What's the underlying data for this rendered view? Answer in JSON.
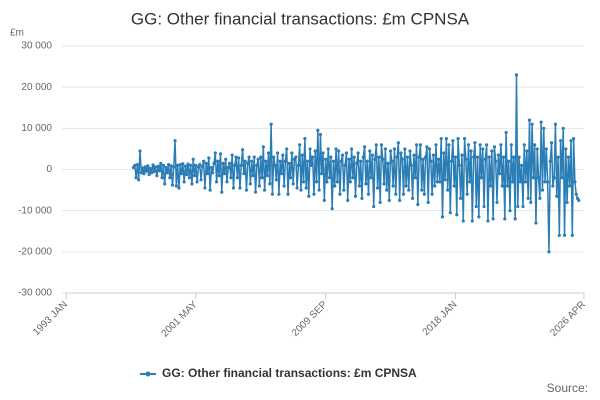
{
  "chart_data": {
    "type": "line",
    "title": "GG: Other financial transactions: £m CPNSA",
    "y_label": "£m",
    "source": "Source:",
    "ylim": [
      -30000,
      30000
    ],
    "yticks": [
      {
        "value": -30000,
        "label": "-30 000"
      },
      {
        "value": -20000,
        "label": "-20 000"
      },
      {
        "value": -10000,
        "label": "-10 000"
      },
      0,
      {
        "value": 10000,
        "label": "10 000"
      },
      {
        "value": 20000,
        "label": "20 000"
      },
      {
        "value": 30000,
        "label": "30 000"
      }
    ],
    "xlim": [
      "1993 JAN",
      "2026 APR"
    ],
    "xticks": [
      "1993 JAN",
      "2001 MAY",
      "2009 SEP",
      "2018 JAN",
      "2026 APR"
    ],
    "grid": true,
    "series": [
      {
        "name": "GG: Other financial transactions: £m CPNSA",
        "color": "#2a7db5",
        "x": [
          "1997 MAY",
          "1997 JUN",
          "1997 JUL",
          "1997 AUG",
          "1997 SEP",
          "1997 OCT",
          "1997 NOV",
          "1997 DEC",
          "1998 JAN",
          "1998 FEB",
          "1998 MAR",
          "1998 APR",
          "1998 MAY",
          "1998 JUN",
          "1998 JUL",
          "1998 AUG",
          "1998 SEP",
          "1998 OCT",
          "1998 NOV",
          "1998 DEC",
          "1999 JAN",
          "1999 FEB",
          "1999 MAR",
          "1999 APR",
          "1999 MAY",
          "1999 JUN",
          "1999 JUL",
          "1999 AUG",
          "1999 SEP",
          "1999 OCT",
          "1999 NOV",
          "1999 DEC",
          "2000 JAN",
          "2000 FEB",
          "2000 MAR",
          "2000 APR",
          "2000 MAY",
          "2000 JUN",
          "2000 JUL",
          "2000 AUG",
          "2000 SEP",
          "2000 OCT",
          "2000 NOV",
          "2000 DEC",
          "2001 JAN",
          "2001 FEB",
          "2001 MAR",
          "2001 APR",
          "2001 MAY",
          "2001 JUN",
          "2001 JUL",
          "2001 AUG",
          "2001 SEP",
          "2001 OCT",
          "2001 NOV",
          "2001 DEC",
          "2002 JAN",
          "2002 FEB",
          "2002 MAR",
          "2002 APR",
          "2002 MAY",
          "2002 JUN",
          "2002 JUL",
          "2002 AUG",
          "2002 SEP",
          "2002 OCT",
          "2002 NOV",
          "2002 DEC",
          "2003 JAN",
          "2003 FEB",
          "2003 MAR",
          "2003 APR",
          "2003 MAY",
          "2003 JUN",
          "2003 JUL",
          "2003 AUG",
          "2003 SEP",
          "2003 OCT",
          "2003 NOV",
          "2003 DEC",
          "2004 JAN",
          "2004 FEB",
          "2004 MAR",
          "2004 APR",
          "2004 MAY",
          "2004 JUN",
          "2004 JUL",
          "2004 AUG",
          "2004 SEP",
          "2004 OCT",
          "2004 NOV",
          "2004 DEC",
          "2005 JAN",
          "2005 FEB",
          "2005 MAR",
          "2005 APR",
          "2005 MAY",
          "2005 JUN",
          "2005 JUL",
          "2005 AUG",
          "2005 SEP",
          "2005 OCT",
          "2005 NOV",
          "2005 DEC",
          "2006 JAN",
          "2006 FEB",
          "2006 MAR",
          "2006 APR",
          "2006 MAY",
          "2006 JUN",
          "2006 JUL",
          "2006 AUG",
          "2006 SEP",
          "2006 OCT",
          "2006 NOV",
          "2006 DEC",
          "2007 JAN",
          "2007 FEB",
          "2007 MAR",
          "2007 APR",
          "2007 MAY",
          "2007 JUN",
          "2007 JUL",
          "2007 AUG",
          "2007 SEP",
          "2007 OCT",
          "2007 NOV",
          "2007 DEC",
          "2008 JAN",
          "2008 FEB",
          "2008 MAR",
          "2008 APR",
          "2008 MAY",
          "2008 JUN",
          "2008 JUL",
          "2008 AUG",
          "2008 SEP",
          "2008 OCT",
          "2008 NOV",
          "2008 DEC",
          "2009 JAN",
          "2009 FEB",
          "2009 MAR",
          "2009 APR",
          "2009 MAY",
          "2009 JUN",
          "2009 JUL",
          "2009 AUG",
          "2009 SEP",
          "2009 OCT",
          "2009 NOV",
          "2009 DEC",
          "2010 JAN",
          "2010 FEB",
          "2010 MAR",
          "2010 APR",
          "2010 MAY",
          "2010 JUN",
          "2010 JUL",
          "2010 AUG",
          "2010 SEP",
          "2010 OCT",
          "2010 NOV",
          "2010 DEC",
          "2011 JAN",
          "2011 FEB",
          "2011 MAR",
          "2011 APR",
          "2011 MAY",
          "2011 JUN",
          "2011 JUL",
          "2011 AUG",
          "2011 SEP",
          "2011 OCT",
          "2011 NOV",
          "2011 DEC",
          "2012 JAN",
          "2012 FEB",
          "2012 MAR",
          "2012 APR",
          "2012 MAY",
          "2012 JUN",
          "2012 JUL",
          "2012 AUG",
          "2012 SEP",
          "2012 OCT",
          "2012 NOV",
          "2012 DEC",
          "2013 JAN",
          "2013 FEB",
          "2013 MAR",
          "2013 APR",
          "2013 MAY",
          "2013 JUN",
          "2013 JUL",
          "2013 AUG",
          "2013 SEP",
          "2013 OCT",
          "2013 NOV",
          "2013 DEC",
          "2014 JAN",
          "2014 FEB",
          "2014 MAR",
          "2014 APR",
          "2014 MAY",
          "2014 JUN",
          "2014 JUL",
          "2014 AUG",
          "2014 SEP",
          "2014 OCT",
          "2014 NOV",
          "2014 DEC",
          "2015 JAN",
          "2015 FEB",
          "2015 MAR",
          "2015 APR",
          "2015 MAY",
          "2015 JUN",
          "2015 JUL",
          "2015 AUG",
          "2015 SEP",
          "2015 OCT",
          "2015 NOV",
          "2015 DEC",
          "2016 JAN",
          "2016 FEB",
          "2016 MAR",
          "2016 APR",
          "2016 MAY",
          "2016 JUN",
          "2016 JUL",
          "2016 AUG",
          "2016 SEP",
          "2016 OCT",
          "2016 NOV",
          "2016 DEC",
          "2017 JAN",
          "2017 FEB",
          "2017 MAR",
          "2017 APR",
          "2017 MAY",
          "2017 JUN",
          "2017 JUL",
          "2017 AUG",
          "2017 SEP",
          "2017 OCT",
          "2017 NOV",
          "2017 DEC",
          "2018 JAN",
          "2018 FEB",
          "2018 MAR",
          "2018 APR",
          "2018 MAY",
          "2018 JUN",
          "2018 JUL",
          "2018 AUG",
          "2018 SEP",
          "2018 OCT",
          "2018 NOV",
          "2018 DEC",
          "2019 JAN",
          "2019 FEB",
          "2019 MAR",
          "2019 APR",
          "2019 MAY",
          "2019 JUN",
          "2019 JUL",
          "2019 AUG",
          "2019 SEP",
          "2019 OCT",
          "2019 NOV",
          "2019 DEC",
          "2020 JAN",
          "2020 FEB",
          "2020 MAR",
          "2020 APR",
          "2020 MAY",
          "2020 JUN",
          "2020 JUL",
          "2020 AUG",
          "2020 SEP",
          "2020 OCT",
          "2020 NOV",
          "2020 DEC",
          "2021 JAN",
          "2021 FEB",
          "2021 MAR",
          "2021 APR",
          "2021 MAY",
          "2021 JUN",
          "2021 JUL",
          "2021 AUG",
          "2021 SEP",
          "2021 OCT",
          "2021 NOV",
          "2021 DEC",
          "2022 JAN",
          "2022 FEB",
          "2022 MAR",
          "2022 APR",
          "2022 MAY",
          "2022 JUN",
          "2022 JUL",
          "2022 AUG",
          "2022 SEP",
          "2022 OCT",
          "2022 NOV",
          "2022 DEC",
          "2023 JAN",
          "2023 FEB",
          "2023 MAR",
          "2023 APR",
          "2023 MAY",
          "2023 JUN",
          "2023 JUL",
          "2023 AUG",
          "2023 SEP",
          "2023 OCT",
          "2023 NOV",
          "2023 DEC",
          "2024 JAN",
          "2024 FEB",
          "2024 MAR",
          "2024 APR",
          "2024 MAY",
          "2024 JUN",
          "2024 JUL",
          "2024 AUG",
          "2024 SEP",
          "2024 OCT",
          "2024 NOV",
          "2024 DEC",
          "2025 JAN",
          "2025 FEB",
          "2025 MAR",
          "2025 APR",
          "2025 MAY",
          "2025 JUN",
          "2025 JUL",
          "2025 AUG",
          "2025 SEP",
          "2025 OCT",
          "2025 NOV",
          "2025 DEC"
        ],
        "values": [
          500,
          1000,
          -2000,
          1200,
          -2500,
          4500,
          -800,
          300,
          -1000,
          600,
          -400,
          900,
          -1200,
          300,
          -800,
          1100,
          -500,
          600,
          -1500,
          800,
          -300,
          1500,
          -2000,
          1000,
          -3500,
          500,
          -800,
          1200,
          -2000,
          900,
          -3800,
          600,
          7000,
          -4000,
          1000,
          -4500,
          1200,
          -1000,
          1400,
          -3000,
          800,
          -1200,
          1300,
          -2000,
          1000,
          -3500,
          2500,
          -1500,
          1000,
          -3000,
          600,
          1200,
          -2500,
          800,
          2000,
          -4500,
          1500,
          -1000,
          2800,
          -5000,
          500,
          -800,
          1500,
          4000,
          -3000,
          2000,
          -1500,
          3800,
          -5500,
          1500,
          -1000,
          2500,
          -3000,
          500,
          1500,
          -2000,
          3500,
          -4500,
          1000,
          3000,
          -2000,
          2800,
          -4500,
          1000,
          4800,
          -1000,
          2000,
          -5000,
          1500,
          3000,
          -3500,
          2000,
          -1500,
          3000,
          -5500,
          1000,
          2500,
          -4000,
          3000,
          -2000,
          5500,
          -5000,
          2000,
          -1500,
          4000,
          -3500,
          11000,
          -6000,
          3000,
          1000,
          -2500,
          4000,
          -6000,
          2000,
          -1000,
          3500,
          -4000,
          2000,
          5000,
          -6000,
          1500,
          -2000,
          4000,
          -3500,
          2500,
          3000,
          -4500,
          1000,
          6000,
          -5000,
          3500,
          -3000,
          7500,
          -4500,
          2000,
          -6500,
          5000,
          1000,
          3000,
          -6000,
          4500,
          -3000,
          9500,
          -5000,
          8500,
          -1000,
          4000,
          -7500,
          2500,
          -3000,
          5000,
          -2000,
          3000,
          -9500,
          2000,
          -4000,
          5000,
          -3000,
          4500,
          -6000,
          2000,
          3500,
          -5000,
          1000,
          4000,
          -7500,
          2500,
          -3000,
          5000,
          -2000,
          3000,
          -6500,
          1500,
          4000,
          -4000,
          2000,
          -7000,
          3000,
          5500,
          -3500,
          2000,
          -6000,
          4500,
          -2000,
          3500,
          -9000,
          2500,
          6000,
          -4500,
          3000,
          -8000,
          6000,
          2500,
          -3500,
          5000,
          -5000,
          1500,
          -7500,
          4500,
          2000,
          -4000,
          5000,
          -6000,
          3000,
          6500,
          -7500,
          4000,
          2500,
          -6000,
          5000,
          -4000,
          3000,
          -5000,
          4500,
          1000,
          -7000,
          3500,
          -2000,
          6000,
          -8500,
          3000,
          6000,
          -5000,
          2500,
          -6000,
          3000,
          5500,
          -8000,
          5000,
          2000,
          -6000,
          3500,
          -4000,
          6000,
          -3000,
          2500,
          -3000,
          7500,
          -11500,
          4000,
          -2500,
          7500,
          -5000,
          6000,
          -10500,
          2000,
          7000,
          -4000,
          3000,
          -11000,
          7500,
          1000,
          -7000,
          3500,
          -12500,
          7500,
          2500,
          -6000,
          6000,
          -3000,
          4500,
          -12500,
          3000,
          6500,
          -9000,
          3000,
          -11500,
          6000,
          -2000,
          5000,
          -9000,
          2500,
          6000,
          -12500,
          3000,
          -4000,
          4500,
          -12000,
          5500,
          2000,
          -8000,
          3500,
          -1000,
          6000,
          -4000,
          3000,
          -12000,
          9000,
          -4000,
          2000,
          -10000,
          6000,
          -3000,
          3000,
          -12000,
          23000,
          -9000,
          3000,
          -3000,
          1000,
          -9000,
          6000,
          -3000,
          4500,
          -7000,
          12000,
          -8000,
          11000,
          -2000,
          6000,
          -13000,
          5000,
          -2000,
          -7000,
          11500,
          -5000,
          10000,
          -3000,
          5000,
          -3000,
          -20000,
          2000,
          6500,
          -4000,
          -2000,
          11000,
          -6500,
          3000,
          -16000,
          7000,
          -2000,
          10000,
          -16000,
          5000,
          -8000,
          3000,
          -4000,
          7000,
          -16000,
          7500,
          -3000,
          -6000,
          -7000,
          -7500
        ]
      }
    ]
  }
}
